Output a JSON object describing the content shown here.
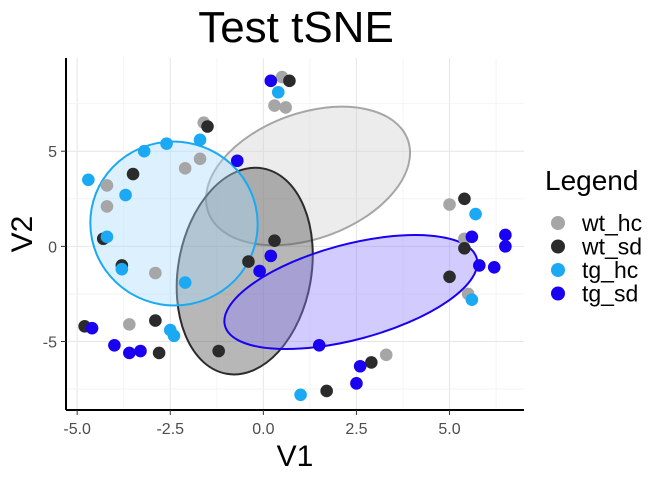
{
  "chart_data": {
    "type": "scatter",
    "title": "Test tSNE",
    "xlabel": "V1",
    "ylabel": "V2",
    "xlim": [
      -5.3,
      7.0
    ],
    "ylim": [
      -8.6,
      9.9
    ],
    "x_ticks": [
      -5.0,
      -2.5,
      0.0,
      2.5,
      5.0
    ],
    "x_tick_labels": [
      "-5.0",
      "-2.5",
      "0.0",
      "2.5",
      "5.0"
    ],
    "y_ticks": [
      -5,
      0,
      5
    ],
    "y_tick_labels": [
      "-5",
      "0",
      "5"
    ],
    "grid": true,
    "legend": {
      "title": "Legend",
      "position": "right"
    },
    "series": [
      {
        "name": "wt_hc",
        "color": "#a6a6a6",
        "ellipse": {
          "cx": 1.2,
          "cy": 3.7,
          "rx": 2.85,
          "ry": 3.3,
          "angle_deg": 20,
          "fill": "#d0d0d0",
          "stroke": "#a6a6a6"
        },
        "points": [
          [
            0.5,
            8.9
          ],
          [
            0.3,
            7.4
          ],
          [
            0.6,
            7.3
          ],
          [
            -1.6,
            6.5
          ],
          [
            -1.7,
            4.6
          ],
          [
            -2.1,
            4.1
          ],
          [
            -4.2,
            3.2
          ],
          [
            -4.2,
            2.1
          ],
          [
            -2.9,
            -1.4
          ],
          [
            -3.6,
            -4.1
          ],
          [
            3.3,
            -5.7
          ],
          [
            5.0,
            2.2
          ],
          [
            5.4,
            0.4
          ],
          [
            5.5,
            -2.5
          ]
        ]
      },
      {
        "name": "wt_sd",
        "color": "#2b2b2b",
        "ellipse": {
          "cx": -0.5,
          "cy": -1.3,
          "rx": 2.8,
          "ry": 3.5,
          "angle_deg": 80,
          "fill": "#4a4a4a",
          "stroke": "#2b2b2b"
        },
        "points": [
          [
            0.7,
            8.7
          ],
          [
            -1.5,
            6.3
          ],
          [
            -3.5,
            3.8
          ],
          [
            -4.3,
            0.4
          ],
          [
            -3.8,
            -1.0
          ],
          [
            0.3,
            0.3
          ],
          [
            -0.4,
            -0.8
          ],
          [
            -2.9,
            -3.9
          ],
          [
            -4.8,
            -4.2
          ],
          [
            -2.8,
            -5.6
          ],
          [
            -1.2,
            -5.5
          ],
          [
            2.9,
            -6.1
          ],
          [
            1.7,
            -7.6
          ],
          [
            5.4,
            2.5
          ],
          [
            5.4,
            -0.1
          ],
          [
            5.0,
            -1.6
          ]
        ]
      },
      {
        "name": "tg_hc",
        "color": "#1aa9f2",
        "ellipse": {
          "cx": -2.4,
          "cy": 1.2,
          "rx": 2.2,
          "ry": 4.4,
          "angle_deg": 80,
          "fill": "#a8dcfb",
          "stroke": "#1aa9f2"
        },
        "points": [
          [
            -4.7,
            3.5
          ],
          [
            -3.2,
            5.0
          ],
          [
            -2.6,
            5.4
          ],
          [
            -1.7,
            5.6
          ],
          [
            -3.7,
            2.7
          ],
          [
            -4.2,
            0.5
          ],
          [
            -3.8,
            -1.2
          ],
          [
            -2.1,
            -1.9
          ],
          [
            -2.5,
            -4.4
          ],
          [
            -2.4,
            -4.7
          ],
          [
            0.4,
            8.1
          ],
          [
            1.0,
            -7.8
          ],
          [
            5.7,
            1.7
          ],
          [
            5.6,
            -2.8
          ]
        ]
      },
      {
        "name": "tg_sd",
        "color": "#1a00f0",
        "ellipse": {
          "cx": 2.35,
          "cy": -2.4,
          "rx": 3.5,
          "ry": 2.5,
          "angle_deg": 15,
          "fill": "#8f80fc",
          "stroke": "#1a00f0"
        },
        "points": [
          [
            0.2,
            8.7
          ],
          [
            -0.7,
            4.5
          ],
          [
            0.2,
            -0.5
          ],
          [
            -0.1,
            -1.3
          ],
          [
            -4.6,
            -4.3
          ],
          [
            -4.0,
            -5.2
          ],
          [
            -3.6,
            -5.6
          ],
          [
            -3.3,
            -5.5
          ],
          [
            1.5,
            -5.2
          ],
          [
            2.6,
            -6.3
          ],
          [
            2.5,
            -7.2
          ],
          [
            5.6,
            0.5
          ],
          [
            5.8,
            -1.0
          ],
          [
            6.2,
            -1.1
          ],
          [
            6.5,
            0.6
          ],
          [
            6.5,
            0.0
          ]
        ]
      }
    ]
  }
}
